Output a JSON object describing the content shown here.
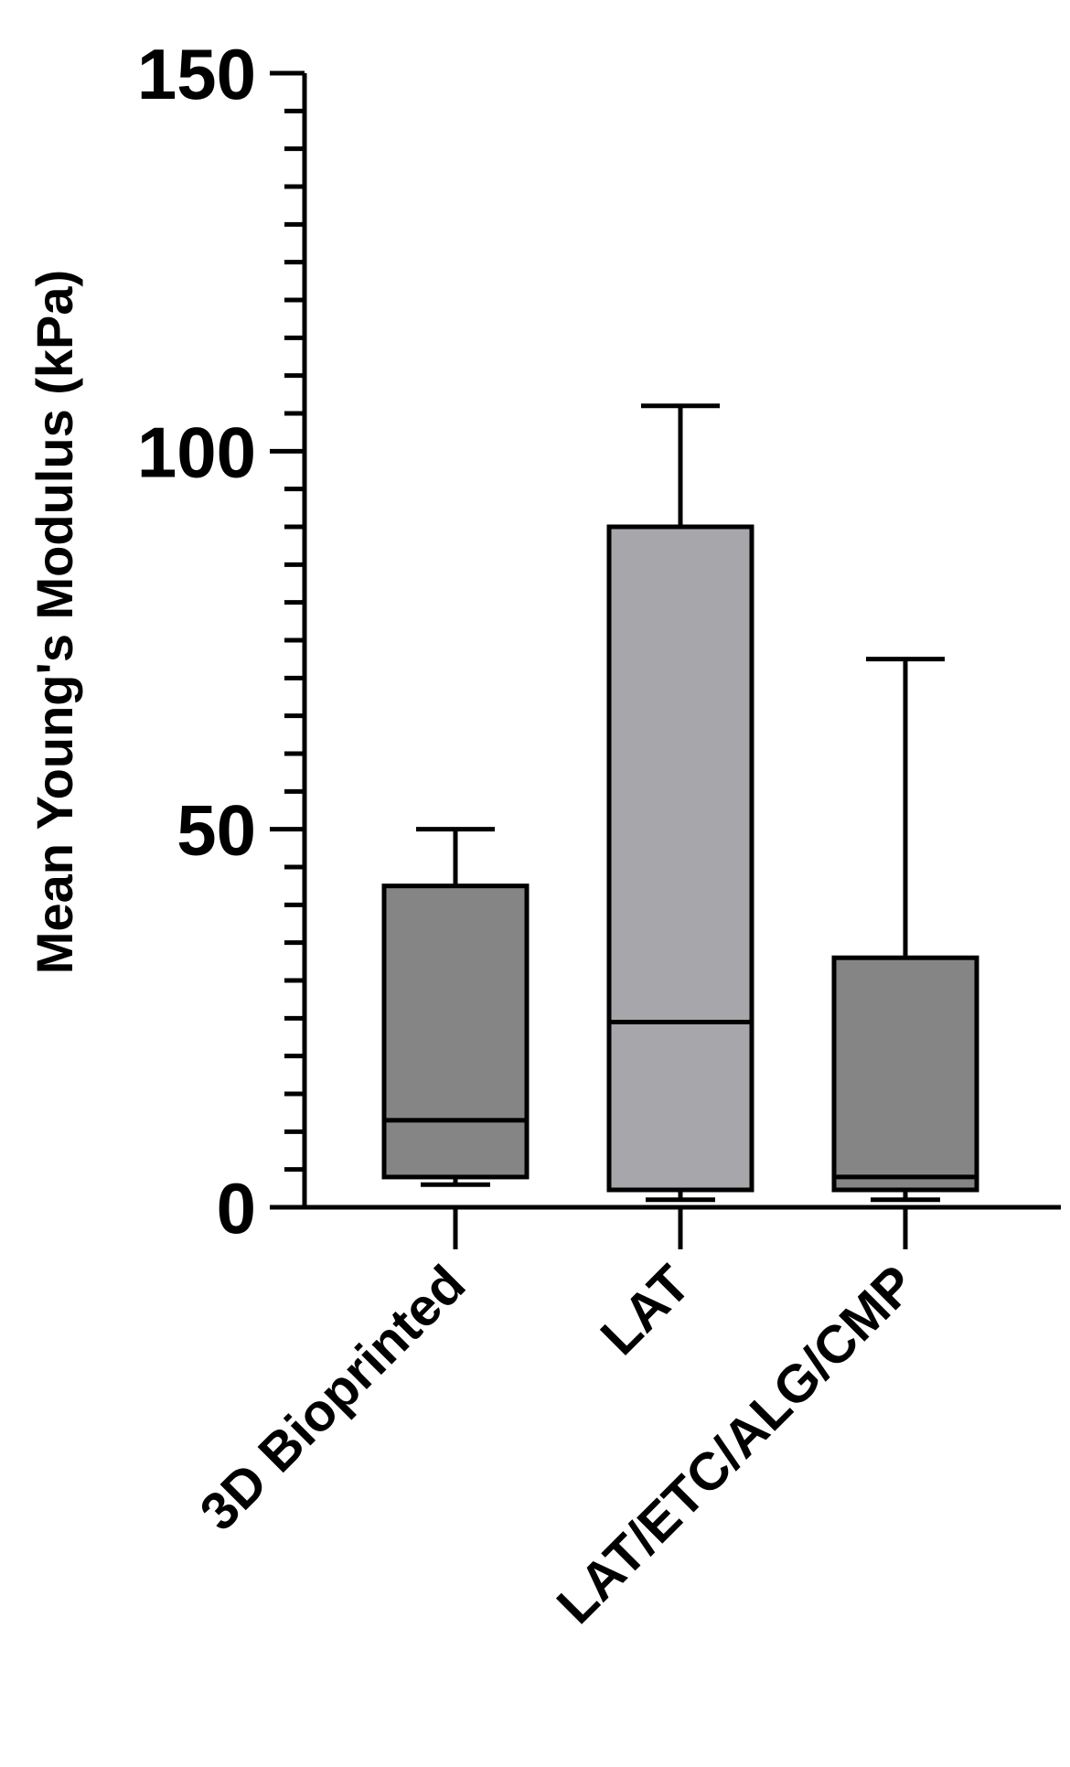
{
  "chart_data": {
    "type": "box",
    "ylabel": "Mean Young's Modulus (kPa)",
    "xlabel": "",
    "ylim": [
      0,
      150
    ],
    "yticks_major": [
      0,
      50,
      100,
      150
    ],
    "yticks_minor_step": 5,
    "categories": [
      "3D Bioprinted",
      "LAT",
      "LAT/ETC/ALG/CMP"
    ],
    "boxes": [
      {
        "category": "3D Bioprinted",
        "min": 3,
        "q1": 4,
        "median": 11.5,
        "q3": 42.5,
        "max": 50,
        "fill": "#858585"
      },
      {
        "category": "LAT",
        "min": 1,
        "q1": 2.3,
        "median": 24.5,
        "q3": 90,
        "max": 106,
        "fill": "#a7a6ab"
      },
      {
        "category": "LAT/ETC/ALG/CMP",
        "min": 1,
        "q1": 2.3,
        "median": 4,
        "q3": 33,
        "max": 72.5,
        "fill": "#858585"
      }
    ],
    "grid": false,
    "legend": "none"
  }
}
